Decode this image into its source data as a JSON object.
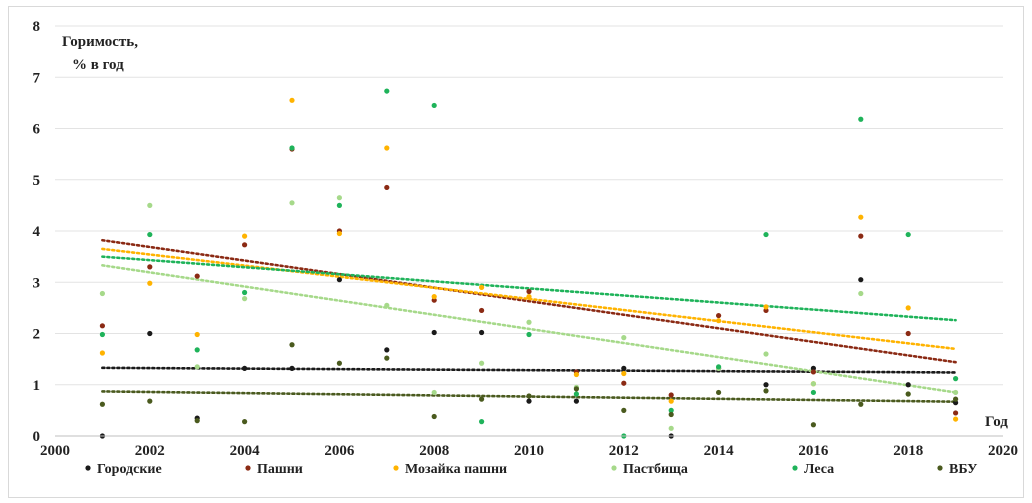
{
  "chart_data": {
    "type": "scatter",
    "ylabel_lines": [
      "Горимость,",
      "% в год"
    ],
    "xlabel": "Год",
    "xlim": [
      2000,
      2020
    ],
    "ylim": [
      0,
      8
    ],
    "xticks": [
      2000,
      2002,
      2004,
      2006,
      2008,
      2010,
      2012,
      2014,
      2016,
      2018,
      2020
    ],
    "yticks": [
      0,
      1,
      2,
      3,
      4,
      5,
      6,
      7,
      8
    ],
    "grid": "horizontal",
    "legend_position": "bottom",
    "trendline_style": "dotted-linear",
    "series": [
      {
        "name": "Городские",
        "color": "#1a1a1a",
        "points": [
          [
            2001,
            0.0
          ],
          [
            2002,
            2.0
          ],
          [
            2003,
            0.35
          ],
          [
            2004,
            1.32
          ],
          [
            2005,
            1.32
          ],
          [
            2006,
            3.05
          ],
          [
            2007,
            1.68
          ],
          [
            2008,
            2.02
          ],
          [
            2009,
            2.02
          ],
          [
            2010,
            0.68
          ],
          [
            2011,
            0.68
          ],
          [
            2012,
            1.32
          ],
          [
            2013,
            0.0
          ],
          [
            2014,
            1.32
          ],
          [
            2015,
            1.0
          ],
          [
            2016,
            1.32
          ],
          [
            2017,
            3.05
          ],
          [
            2018,
            1.0
          ],
          [
            2019,
            0.65
          ]
        ],
        "trend": [
          [
            2001,
            1.33
          ],
          [
            2019,
            1.24
          ]
        ]
      },
      {
        "name": "Пашни",
        "color": "#8b2a14",
        "points": [
          [
            2001,
            2.15
          ],
          [
            2002,
            3.3
          ],
          [
            2003,
            3.12
          ],
          [
            2004,
            3.73
          ],
          [
            2005,
            5.6
          ],
          [
            2006,
            4.0
          ],
          [
            2007,
            4.85
          ],
          [
            2008,
            2.65
          ],
          [
            2009,
            2.45
          ],
          [
            2010,
            2.82
          ],
          [
            2011,
            1.25
          ],
          [
            2012,
            1.03
          ],
          [
            2013,
            0.8
          ],
          [
            2014,
            2.35
          ],
          [
            2015,
            2.45
          ],
          [
            2016,
            1.25
          ],
          [
            2017,
            3.9
          ],
          [
            2018,
            2.0
          ],
          [
            2019,
            0.45
          ]
        ],
        "trend": [
          [
            2001,
            3.82
          ],
          [
            2019,
            1.44
          ]
        ]
      },
      {
        "name": "Мозайка пашни",
        "color": "#ffb300",
        "points": [
          [
            2001,
            1.62
          ],
          [
            2002,
            2.98
          ],
          [
            2003,
            1.98
          ],
          [
            2004,
            3.9
          ],
          [
            2005,
            6.55
          ],
          [
            2006,
            3.95
          ],
          [
            2007,
            5.62
          ],
          [
            2008,
            2.72
          ],
          [
            2009,
            2.9
          ],
          [
            2010,
            2.72
          ],
          [
            2011,
            1.2
          ],
          [
            2012,
            1.22
          ],
          [
            2013,
            0.68
          ],
          [
            2014,
            2.25
          ],
          [
            2015,
            2.52
          ],
          [
            2016,
            1.02
          ],
          [
            2017,
            4.27
          ],
          [
            2018,
            2.5
          ],
          [
            2019,
            0.33
          ]
        ],
        "trend": [
          [
            2001,
            3.65
          ],
          [
            2019,
            1.7
          ]
        ]
      },
      {
        "name": "Пастбища",
        "color": "#a6d98a",
        "points": [
          [
            2001,
            2.78
          ],
          [
            2002,
            4.5
          ],
          [
            2003,
            1.35
          ],
          [
            2004,
            2.68
          ],
          [
            2005,
            4.55
          ],
          [
            2006,
            4.65
          ],
          [
            2007,
            2.55
          ],
          [
            2008,
            0.85
          ],
          [
            2009,
            1.42
          ],
          [
            2010,
            2.22
          ],
          [
            2011,
            0.95
          ],
          [
            2012,
            1.92
          ],
          [
            2013,
            0.15
          ],
          [
            2014,
            1.32
          ],
          [
            2015,
            1.6
          ],
          [
            2016,
            1.02
          ],
          [
            2017,
            2.78
          ],
          [
            2018,
            0.82
          ],
          [
            2019,
            0.85
          ]
        ],
        "trend": [
          [
            2001,
            3.33
          ],
          [
            2019,
            0.85
          ]
        ]
      },
      {
        "name": "Леса",
        "color": "#1fb35a",
        "points": [
          [
            2001,
            1.98
          ],
          [
            2002,
            3.93
          ],
          [
            2003,
            1.68
          ],
          [
            2004,
            2.8
          ],
          [
            2005,
            5.62
          ],
          [
            2006,
            4.5
          ],
          [
            2007,
            6.73
          ],
          [
            2008,
            6.45
          ],
          [
            2009,
            0.28
          ],
          [
            2010,
            1.98
          ],
          [
            2011,
            0.82
          ],
          [
            2012,
            0.0
          ],
          [
            2013,
            0.5
          ],
          [
            2014,
            1.35
          ],
          [
            2015,
            3.93
          ],
          [
            2016,
            0.85
          ],
          [
            2017,
            6.18
          ],
          [
            2018,
            3.93
          ],
          [
            2019,
            1.12
          ]
        ],
        "trend": [
          [
            2001,
            3.5
          ],
          [
            2019,
            2.26
          ]
        ]
      },
      {
        "name": "ВБУ",
        "color": "#4a5a1e",
        "points": [
          [
            2001,
            0.62
          ],
          [
            2002,
            0.68
          ],
          [
            2003,
            0.3
          ],
          [
            2004,
            0.28
          ],
          [
            2005,
            1.78
          ],
          [
            2006,
            1.42
          ],
          [
            2007,
            1.52
          ],
          [
            2008,
            0.38
          ],
          [
            2009,
            0.72
          ],
          [
            2010,
            0.78
          ],
          [
            2011,
            0.92
          ],
          [
            2012,
            0.5
          ],
          [
            2013,
            0.42
          ],
          [
            2014,
            0.85
          ],
          [
            2015,
            0.88
          ],
          [
            2016,
            0.22
          ],
          [
            2017,
            0.62
          ],
          [
            2018,
            0.82
          ],
          [
            2019,
            0.72
          ]
        ],
        "trend": [
          [
            2001,
            0.87
          ],
          [
            2019,
            0.67
          ]
        ]
      }
    ]
  }
}
